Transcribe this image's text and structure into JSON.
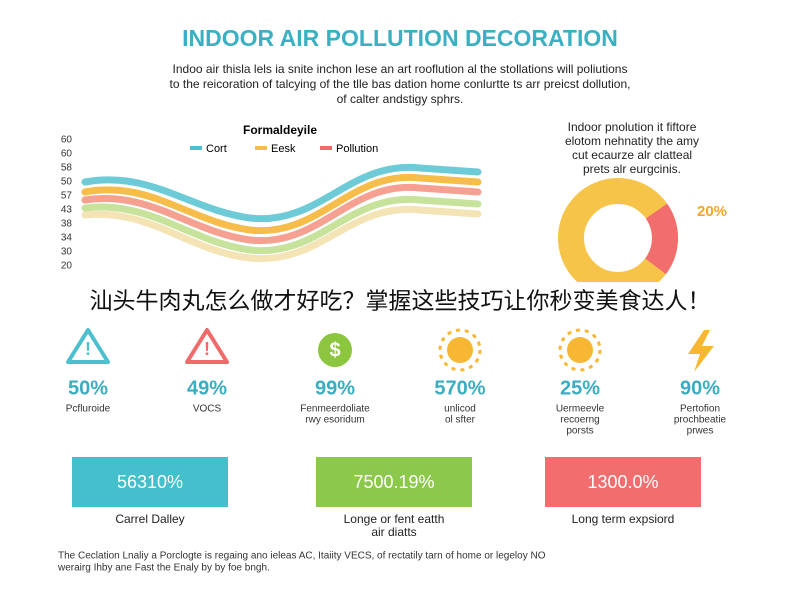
{
  "header": {
    "title": "INDOOR AIR POLLUTION DECORATION",
    "intro": [
      "Indoo air thisla lels ia snite inchon lese an art rooflution al the stollations will poliutions",
      "to the reicoration of talcying of the tlle bas dation home conlurtte ts arr preicst dollution,",
      "of calter andstigy sphrs."
    ]
  },
  "chart": {
    "title": "Formaldeyile",
    "legend": [
      "Cort",
      "Eesk",
      "Pollution"
    ],
    "axis_labels": [
      "60",
      "60",
      "58",
      "50",
      "57",
      "43",
      "38",
      "34",
      "30",
      "20"
    ]
  },
  "side": {
    "lines": [
      "Indoor pnolution it fiftore",
      "elotom nehnatity the amy",
      "cut ecaurze alr clatteal",
      "prets alr eurgcinis."
    ],
    "donut": {
      "value": 20,
      "label": "20%"
    }
  },
  "banner": "汕头牛肉丸怎么做才好吃？掌握这些技巧让你秒变美食达人！",
  "stats": [
    {
      "value": "50%",
      "caption": [
        "Pcfluroide"
      ]
    },
    {
      "value": "49%",
      "caption": [
        "VOCS"
      ]
    },
    {
      "value": "99%",
      "caption": [
        "Fenmeerdoliate",
        "rwy esoridum"
      ]
    },
    {
      "value": "570%",
      "caption": [
        "unlicod",
        "ol sfter"
      ]
    },
    {
      "value": "25%",
      "caption": [
        "Uermeevle",
        "recoerng",
        "porsts"
      ]
    },
    {
      "value": "90%",
      "caption": [
        "Pertofion",
        "prochbeatie",
        "prwes"
      ]
    }
  ],
  "boxes": [
    {
      "value": "56310%",
      "caption": [
        "Carrel Dalley"
      ]
    },
    {
      "value": "7500.19%",
      "caption": [
        "Longe or fent eatth",
        "air diatts"
      ]
    },
    {
      "value": "1300.0%",
      "caption": [
        "Long term expsiord"
      ]
    }
  ],
  "footer": [
    "The Ceclation Lnaliy a Porclogte is regaing ano ieleas AC, Itaiity VECS, of rectatily tarn of home or legeloy NO",
    "werairg Ihby ane Fast the Enaly by by foe bngh."
  ]
}
